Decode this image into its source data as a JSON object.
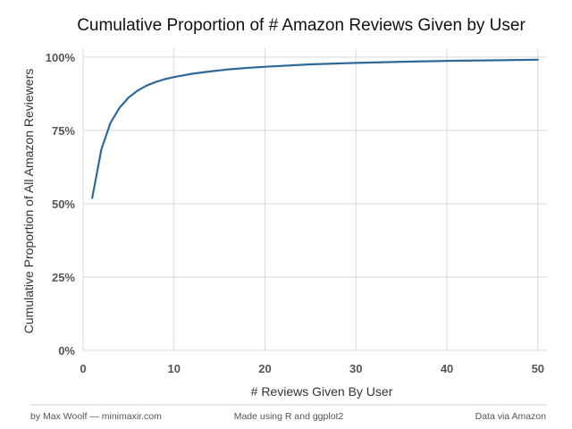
{
  "chart_data": {
    "type": "line",
    "title": "Cumulative Proportion of # Amazon Reviews Given by User",
    "xlabel": "# Reviews Given By User",
    "ylabel": "Cumulative Proportion of All Amazon Reviewers",
    "xlim": [
      0,
      51
    ],
    "ylim": [
      0,
      1.03
    ],
    "x_ticks": [
      0,
      10,
      20,
      30,
      40,
      50
    ],
    "x_tick_labels": [
      "0",
      "10",
      "20",
      "30",
      "40",
      "50"
    ],
    "y_ticks": [
      0,
      0.25,
      0.5,
      0.75,
      1.0
    ],
    "y_tick_labels": [
      "0%",
      "25%",
      "50%",
      "75%",
      "100%"
    ],
    "grid": true,
    "series": [
      {
        "color": "#2e6a99",
        "x": [
          1,
          2,
          3,
          4,
          5,
          6,
          7,
          8,
          9,
          10,
          12,
          14,
          16,
          18,
          20,
          25,
          30,
          35,
          40,
          45,
          50
        ],
        "y": [
          0.52,
          0.685,
          0.775,
          0.827,
          0.862,
          0.886,
          0.903,
          0.915,
          0.925,
          0.932,
          0.943,
          0.951,
          0.958,
          0.963,
          0.967,
          0.975,
          0.98,
          0.984,
          0.987,
          0.989,
          0.991
        ]
      }
    ]
  },
  "footer": {
    "left": "by Max Woolf — minimaxir.com",
    "center": "Made using R and ggplot2",
    "right": "Data via Amazon"
  }
}
